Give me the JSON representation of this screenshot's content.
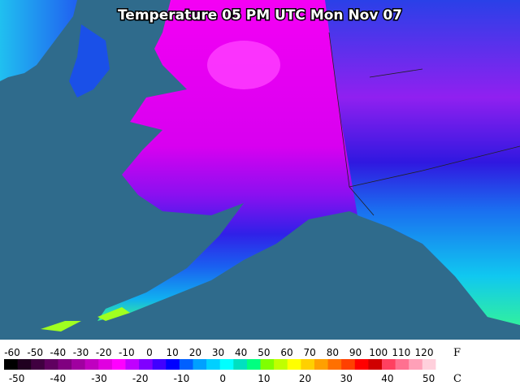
{
  "map": {
    "title": "Temperature 05 PM UTC Mon Nov 07"
  },
  "colorbar": {
    "fahrenheit_unit": "F",
    "celsius_unit": "C",
    "fahrenheit_ticks": [
      -60,
      -50,
      -40,
      -30,
      -20,
      -10,
      0,
      10,
      20,
      30,
      40,
      50,
      60,
      70,
      80,
      90,
      100,
      110,
      120
    ],
    "celsius_ticks": [
      -50,
      -40,
      -30,
      -20,
      -10,
      0,
      10,
      20,
      30,
      40,
      50
    ],
    "colors": [
      "#000000",
      "#200020",
      "#400040",
      "#600060",
      "#800080",
      "#a000a0",
      "#c000c0",
      "#e000e0",
      "#ff00ff",
      "#c000ff",
      "#8000ff",
      "#4000ff",
      "#0000ff",
      "#0060ff",
      "#00a0ff",
      "#00d0ff",
      "#00ffff",
      "#00e0c0",
      "#00ff80",
      "#80ff00",
      "#c0ff00",
      "#ffff00",
      "#ffd000",
      "#ffa000",
      "#ff7000",
      "#ff4000",
      "#ff0000",
      "#d00000",
      "#ff4060",
      "#ff7090",
      "#ffa0b8",
      "#ffd0dc",
      "#ffffff"
    ]
  }
}
